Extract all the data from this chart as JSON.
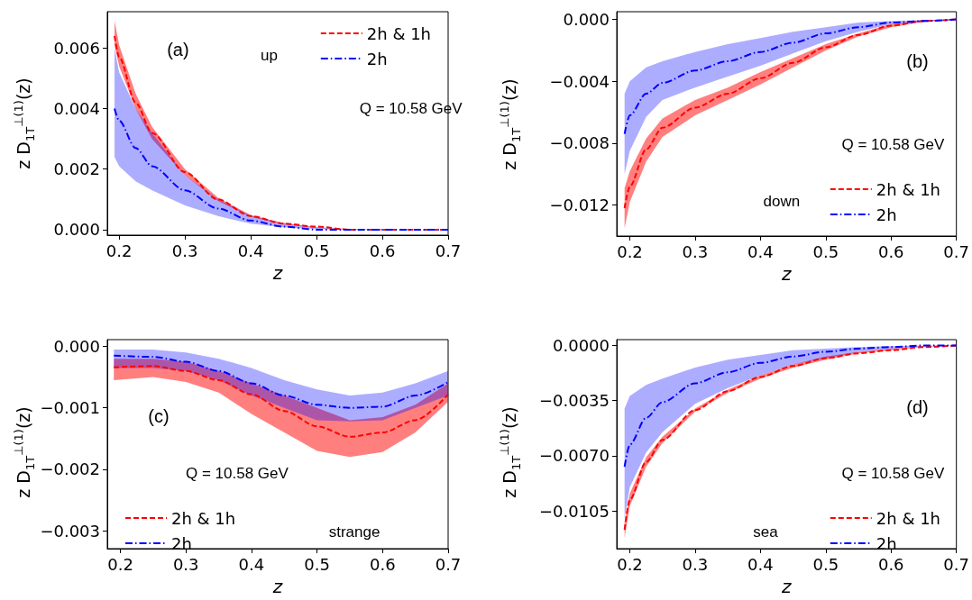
{
  "chart_data": [
    {
      "type": "line",
      "xlabel": "z",
      "ylabel": "z D$_{1T}$$^{⊥(1)}$(z)",
      "annotations": [
        "(a)",
        "up",
        "Q = 10.58 GeV"
      ],
      "legend": "top right",
      "xlim": [
        0.182,
        0.7
      ],
      "xticks": [
        0.2,
        0.3,
        0.4,
        0.5,
        0.6,
        0.7
      ],
      "ylim": [
        -0.00018,
        0.0072
      ],
      "yticks": [
        {
          "value": 0,
          "label": "0.000"
        },
        {
          "value": 0.002,
          "label": "0.002"
        },
        {
          "value": 0.004,
          "label": "0.004"
        },
        {
          "value": 0.006,
          "label": "0.006"
        }
      ],
      "grid": false,
      "x": [
        0.193,
        0.2,
        0.225,
        0.25,
        0.3,
        0.35,
        0.4,
        0.45,
        0.5,
        0.55,
        0.6,
        0.65,
        0.7
      ],
      "series": [
        {
          "name": "2h & 1h",
          "color": "#ff0000",
          "line_style": "dashed",
          "values": [
            0.0064,
            0.0057,
            0.0042,
            0.0032,
            0.0019,
            0.001,
            0.00045,
            0.0002,
            0.0001,
            0,
            0,
            0,
            0
          ],
          "lower": [
            0.0061,
            0.0054,
            0.004,
            0.003,
            0.0018,
            0.00095,
            0.00042,
            0.00018,
            6e-05,
            2e-05,
            0,
            0,
            0
          ],
          "upper": [
            0.0069,
            0.0061,
            0.0045,
            0.0034,
            0.002,
            0.00106,
            0.00048,
            0.00022,
            8e-05,
            3e-05,
            0,
            0,
            0
          ]
        },
        {
          "name": "2h",
          "color": "#0000ff",
          "line_style": "dashdot",
          "values": [
            0.004,
            0.0036,
            0.0027,
            0.0021,
            0.0013,
            0.0007,
            0.0003,
            0.0001,
            0,
            0,
            0,
            0,
            0
          ],
          "lower": [
            0.0024,
            0.0021,
            0.0016,
            0.0013,
            0.0008,
            0.00045,
            0.0002,
            8e-05,
            2e-05,
            0,
            0,
            0,
            0
          ],
          "upper": [
            0.006,
            0.0052,
            0.004,
            0.0032,
            0.0018,
            0.001,
            0.00046,
            0.0002,
            7e-05,
            2e-05,
            0,
            0,
            0
          ]
        }
      ]
    },
    {
      "type": "line",
      "xlabel": "z",
      "ylabel": "z D$_{1T}$$^{⊥(1)}$(z)",
      "annotations": [
        "(b)",
        "Q = 10.58 GeV",
        "down"
      ],
      "legend": "bottom right",
      "xlim": [
        0.18,
        0.7
      ],
      "xticks": [
        0.2,
        0.3,
        0.4,
        0.5,
        0.6,
        0.7
      ],
      "ylim": [
        -0.014,
        0.0005
      ],
      "yticks": [
        {
          "value": -0.012,
          "label": "−0.012"
        },
        {
          "value": -0.008,
          "label": "−0.008"
        },
        {
          "value": -0.004,
          "label": "−0.004"
        },
        {
          "value": 0,
          "label": "0.000"
        }
      ],
      "grid": false,
      "x": [
        0.192,
        0.2,
        0.225,
        0.25,
        0.3,
        0.35,
        0.4,
        0.45,
        0.5,
        0.55,
        0.6,
        0.65,
        0.7
      ],
      "series": [
        {
          "name": "2h & 1h",
          "color": "#ff0000",
          "line_style": "dashed",
          "values": [
            -0.0122,
            -0.0108,
            -0.0084,
            -0.007,
            -0.0057,
            -0.0048,
            -0.0038,
            -0.0028,
            -0.0018,
            -0.001,
            -0.0004,
            -0.0001,
            0
          ],
          "lower": [
            -0.0135,
            -0.0118,
            -0.0092,
            -0.0076,
            -0.0062,
            -0.0052,
            -0.0042,
            -0.0031,
            -0.002,
            -0.0011,
            -0.0005,
            -0.00015,
            0
          ],
          "upper": [
            -0.0109,
            -0.0098,
            -0.0077,
            -0.0064,
            -0.0052,
            -0.0044,
            -0.0034,
            -0.0025,
            -0.0016,
            -0.0009,
            -0.0003,
            -5e-05,
            0
          ]
        },
        {
          "name": "2h",
          "color": "#0000ff",
          "line_style": "dashdot",
          "values": [
            -0.0074,
            -0.0062,
            -0.0048,
            -0.0041,
            -0.0033,
            -0.0027,
            -0.0021,
            -0.0015,
            -0.0009,
            -0.0005,
            -0.0002,
            -0.0001,
            0
          ],
          "lower": [
            -0.01,
            -0.0085,
            -0.0063,
            -0.0052,
            -0.0044,
            -0.0037,
            -0.003,
            -0.0022,
            -0.0014,
            -0.0008,
            -0.0003,
            -0.00015,
            0
          ],
          "upper": [
            -0.0048,
            -0.004,
            -0.0031,
            -0.0027,
            -0.0021,
            -0.0016,
            -0.0012,
            -0.0008,
            -0.0005,
            -0.0002,
            -0.0001,
            -5e-05,
            0
          ]
        }
      ]
    },
    {
      "type": "line",
      "xlabel": "z",
      "ylabel": "z D$_{1T}$$^{⊥(1)}$(z)",
      "annotations": [
        "(c)",
        "Q = 10.58 GeV",
        "strange"
      ],
      "legend": "bottom left",
      "xlim": [
        0.18,
        0.7
      ],
      "xticks": [
        0.2,
        0.3,
        0.4,
        0.5,
        0.6,
        0.7
      ],
      "ylim": [
        -0.00329,
        0.00011
      ],
      "yticks": [
        {
          "value": -0.003,
          "label": "−0.003"
        },
        {
          "value": -0.002,
          "label": "−0.002"
        },
        {
          "value": -0.001,
          "label": "−0.001"
        },
        {
          "value": 0,
          "label": "0.000"
        }
      ],
      "grid": false,
      "x": [
        0.19,
        0.25,
        0.3,
        0.35,
        0.4,
        0.45,
        0.5,
        0.55,
        0.6,
        0.65,
        0.7
      ],
      "series": [
        {
          "name": "2h & 1h",
          "color": "#ff0000",
          "line_style": "dashed",
          "values": [
            -0.00034,
            -0.00032,
            -0.0004,
            -0.00055,
            -0.00078,
            -0.00105,
            -0.0013,
            -0.00147,
            -0.0014,
            -0.0012,
            -0.00078
          ],
          "lower": [
            -0.00055,
            -0.0005,
            -0.00058,
            -0.00075,
            -0.0011,
            -0.0014,
            -0.0017,
            -0.0018,
            -0.00172,
            -0.0014,
            -0.0009
          ],
          "upper": [
            -0.0002,
            -0.0002,
            -0.00025,
            -0.0004,
            -0.0006,
            -0.0008,
            -0.001,
            -0.0012,
            -0.00115,
            -0.00095,
            -0.0006
          ]
        },
        {
          "name": "2h",
          "color": "#0000ff",
          "line_style": "dashdot",
          "values": [
            -0.00015,
            -0.00017,
            -0.00025,
            -0.0004,
            -0.0006,
            -0.0008,
            -0.00095,
            -0.001,
            -0.00098,
            -0.0008,
            -0.00058
          ],
          "lower": [
            -0.00035,
            -0.00035,
            -0.0004,
            -0.00055,
            -0.0008,
            -0.001,
            -0.0012,
            -0.00122,
            -0.0012,
            -0.001,
            -0.0008
          ],
          "upper": [
            -5e-05,
            -5e-05,
            -0.0001,
            -0.0002,
            -0.00035,
            -0.00055,
            -0.0007,
            -0.0008,
            -0.00075,
            -0.0006,
            -0.0004
          ]
        }
      ]
    },
    {
      "type": "line",
      "xlabel": "z",
      "ylabel": "z D$_{1T}$$^{⊥(1)}$(z)",
      "annotations": [
        "(d)",
        "Q = 10.58 GeV",
        "sea"
      ],
      "legend": "bottom right",
      "xlim": [
        0.18,
        0.7
      ],
      "xticks": [
        0.2,
        0.3,
        0.4,
        0.5,
        0.6,
        0.7
      ],
      "ylim": [
        -0.0129,
        0.00037
      ],
      "yticks": [
        {
          "value": -0.0105,
          "label": "−0.0105"
        },
        {
          "value": -0.007,
          "label": "−0.0070"
        },
        {
          "value": -0.0035,
          "label": "−0.0035"
        },
        {
          "value": 0,
          "label": "0.0000"
        }
      ],
      "grid": false,
      "x": [
        0.192,
        0.2,
        0.225,
        0.25,
        0.3,
        0.35,
        0.4,
        0.45,
        0.5,
        0.55,
        0.6,
        0.65,
        0.7
      ],
      "series": [
        {
          "name": "2h & 1h",
          "color": "#ff0000",
          "line_style": "dashed",
          "values": [
            -0.0117,
            -0.0098,
            -0.0074,
            -0.006,
            -0.0041,
            -0.0029,
            -0.002,
            -0.0013,
            -0.0008,
            -0.0005,
            -0.0003,
            -0.0001,
            0
          ],
          "lower": [
            -0.0122,
            -0.0102,
            -0.0077,
            -0.0062,
            -0.0042,
            -0.003,
            -0.0021,
            -0.0014,
            -0.0009,
            -0.0005,
            -0.0003,
            -0.0001,
            0
          ],
          "upper": [
            -0.0112,
            -0.0094,
            -0.0071,
            -0.0058,
            -0.004,
            -0.0028,
            -0.0019,
            -0.0012,
            -0.0007,
            -0.0004,
            -0.0002,
            -0.0001,
            0
          ]
        },
        {
          "name": "2h",
          "color": "#0000ff",
          "line_style": "dashdot",
          "values": [
            -0.0077,
            -0.0063,
            -0.0046,
            -0.0036,
            -0.0024,
            -0.0017,
            -0.0011,
            -0.0007,
            -0.0004,
            -0.0002,
            -0.0001,
            0,
            0
          ],
          "lower": [
            -0.011,
            -0.009,
            -0.0068,
            -0.0055,
            -0.0037,
            -0.0027,
            -0.0019,
            -0.0012,
            -0.0008,
            -0.0004,
            -0.0002,
            -0.0001,
            0
          ],
          "upper": [
            -0.004,
            -0.0032,
            -0.0025,
            -0.0021,
            -0.0014,
            -0.0009,
            -0.0006,
            -0.0003,
            -0.0002,
            -0.0001,
            -5e-05,
            0,
            0
          ]
        }
      ]
    }
  ]
}
